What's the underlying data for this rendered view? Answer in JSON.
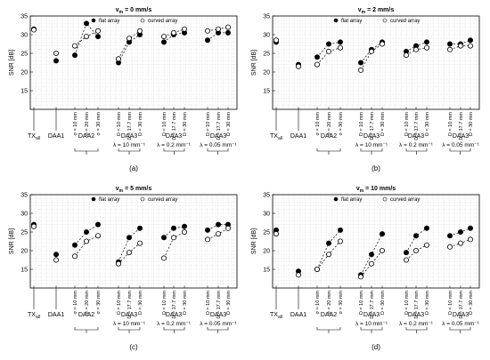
{
  "figure": {
    "x_group_labels": [
      "TX",
      "DAA1",
      "DAA2",
      "DAA3",
      "DAA3",
      "DAA3"
    ],
    "tx_subscript": "all",
    "daa2_rotated_labels": [
      "σ = 10 mm",
      "σ = 20 mm",
      "σ = 30 mm"
    ],
    "daa3_rotated_labels": [
      "D = 10 mm",
      "D = 17.7 mm",
      "D = 30 mm"
    ],
    "lambda_labels": [
      "λ = 10 mm⁻¹",
      "λ = 0.2 mm⁻¹",
      "λ = 0.05 mm⁻¹"
    ],
    "colors": {
      "flat": "#000000",
      "curved": "#ffffff",
      "grid": "#d9d9d9"
    },
    "marker_note": "flat = filled circle, curved = open circle"
  },
  "chart_data": [
    {
      "type": "scatter",
      "panel_label": "(a)",
      "title": "v_m = 0 mm/s",
      "title_parts": {
        "v": "v",
        "sub": "m",
        "rest": " = 0 mm/s"
      },
      "ylabel": "SNR [dB]",
      "ylim": [
        10,
        35
      ],
      "yticks": [
        15,
        20,
        25,
        30,
        35
      ],
      "grid": true,
      "legend_position": "top",
      "positions": [
        "TX_all",
        "DAA1",
        "DAA2 σ=10 mm",
        "DAA2 σ=20 mm",
        "DAA2 σ=30 mm",
        "DAA3 λ=10 D=10 mm",
        "DAA3 λ=10 D=17.7 mm",
        "DAA3 λ=10 D=30 mm",
        "DAA3 λ=0.2 D=10 mm",
        "DAA3 λ=0.2 D=17.7 mm",
        "DAA3 λ=0.2 D=30 mm",
        "DAA3 λ=0.05 D=10 mm",
        "DAA3 λ=0.05 D=17.7 mm",
        "DAA3 λ=0.05 D=30 mm"
      ],
      "series": [
        {
          "name": "flat array",
          "marker": "filled",
          "values": [
            31.5,
            23,
            24.5,
            33,
            29.5,
            22.5,
            28,
            30,
            28,
            30,
            30.5,
            28.5,
            30.5,
            30.5
          ]
        },
        {
          "name": "curved array",
          "marker": "open",
          "values": [
            31.3,
            25,
            27,
            29.5,
            31,
            23.5,
            29,
            31,
            29.5,
            30.5,
            31.5,
            31,
            31.5,
            32
          ]
        }
      ]
    },
    {
      "type": "scatter",
      "panel_label": "(b)",
      "title": "v_m = 2 mm/s",
      "title_parts": {
        "v": "v",
        "sub": "m",
        "rest": " = 2 mm/s"
      },
      "ylabel": "SNR [dB]",
      "ylim": [
        10,
        35
      ],
      "yticks": [
        15,
        20,
        25,
        30,
        35
      ],
      "grid": true,
      "legend_position": "top",
      "positions": [
        "TX_all",
        "DAA1",
        "DAA2 σ=10 mm",
        "DAA2 σ=20 mm",
        "DAA2 σ=30 mm",
        "DAA3 λ=10 D=10 mm",
        "DAA3 λ=10 D=17.7 mm",
        "DAA3 λ=10 D=30 mm",
        "DAA3 λ=0.2 D=10 mm",
        "DAA3 λ=0.2 D=17.7 mm",
        "DAA3 λ=0.2 D=30 mm",
        "DAA3 λ=0.05 D=10 mm",
        "DAA3 λ=0.05 D=17.7 mm",
        "DAA3 λ=0.05 D=30 mm"
      ],
      "series": [
        {
          "name": "flat array",
          "marker": "filled",
          "values": [
            28,
            22,
            24,
            27.5,
            28,
            22.5,
            26,
            28,
            25.5,
            27,
            28,
            27.5,
            27.5,
            28.5
          ]
        },
        {
          "name": "curved array",
          "marker": "open",
          "values": [
            28.5,
            21.5,
            22,
            25.5,
            26.5,
            20.5,
            25.5,
            27.5,
            24.5,
            26,
            26.5,
            26,
            27,
            27
          ]
        }
      ]
    },
    {
      "type": "scatter",
      "panel_label": "(c)",
      "title": "v_m = 5 mm/s",
      "title_parts": {
        "v": "v",
        "sub": "m",
        "rest": " = 5 mm/s"
      },
      "ylabel": "SNR [dB]",
      "ylim": [
        10,
        35
      ],
      "yticks": [
        15,
        20,
        25,
        30,
        35
      ],
      "grid": true,
      "legend_position": "top",
      "positions": [
        "TX_all",
        "DAA1",
        "DAA2 σ=10 mm",
        "DAA2 σ=20 mm",
        "DAA2 σ=30 mm",
        "DAA3 λ=10 D=10 mm",
        "DAA3 λ=10 D=17.7 mm",
        "DAA3 λ=10 D=30 mm",
        "DAA3 λ=0.2 D=10 mm",
        "DAA3 λ=0.2 D=17.7 mm",
        "DAA3 λ=0.2 D=30 mm",
        "DAA3 λ=0.05 D=10 mm",
        "DAA3 λ=0.05 D=17.7 mm",
        "DAA3 λ=0.05 D=30 mm"
      ],
      "series": [
        {
          "name": "flat array",
          "marker": "filled",
          "values": [
            27,
            19,
            21.5,
            25,
            27,
            17,
            23.5,
            26,
            23.5,
            26,
            26.5,
            25.5,
            27,
            27
          ]
        },
        {
          "name": "curved array",
          "marker": "open",
          "values": [
            26.5,
            17.5,
            18.5,
            22.5,
            24,
            16.5,
            19.5,
            22,
            18,
            23.5,
            25,
            23,
            24.5,
            26
          ]
        }
      ]
    },
    {
      "type": "scatter",
      "panel_label": "(d)",
      "title": "v_m = 10 mm/s",
      "title_parts": {
        "v": "v",
        "sub": "m",
        "rest": " = 10 mm/s"
      },
      "ylabel": "SNR [dB]",
      "ylim": [
        10,
        35
      ],
      "yticks": [
        15,
        20,
        25,
        30,
        35
      ],
      "grid": true,
      "legend_position": "top",
      "positions": [
        "TX_all",
        "DAA1",
        "DAA2 σ=10 mm",
        "DAA2 σ=20 mm",
        "DAA2 σ=30 mm",
        "DAA3 λ=10 D=10 mm",
        "DAA3 λ=10 D=17.7 mm",
        "DAA3 λ=10 D=30 mm",
        "DAA3 λ=0.2 D=10 mm",
        "DAA3 λ=0.2 D=17.7 mm",
        "DAA3 λ=0.2 D=30 mm",
        "DAA3 λ=0.05 D=10 mm",
        "DAA3 λ=0.05 D=17.7 mm",
        "DAA3 λ=0.05 D=30 mm"
      ],
      "series": [
        {
          "name": "flat array",
          "marker": "filled",
          "values": [
            25.5,
            14.5,
            15,
            22,
            25.5,
            13.5,
            19,
            24.5,
            19.5,
            24,
            26,
            24,
            25,
            26
          ]
        },
        {
          "name": "curved array",
          "marker": "open",
          "values": [
            24.5,
            13.5,
            15,
            19,
            22.5,
            13,
            16.5,
            20,
            17.5,
            20,
            21.5,
            21,
            22,
            23
          ]
        }
      ]
    }
  ]
}
